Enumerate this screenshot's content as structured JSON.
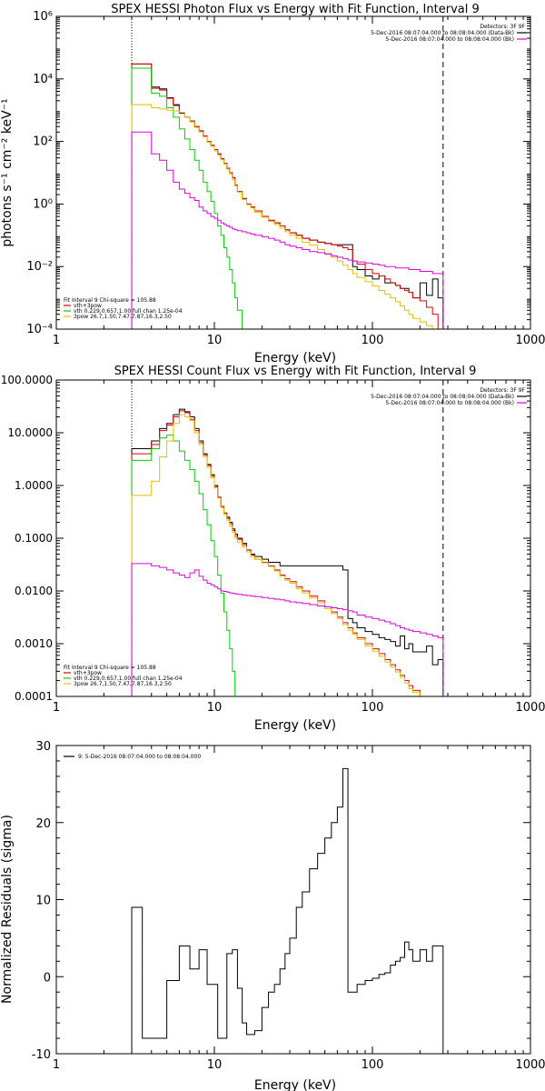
{
  "chart_data": [
    {
      "type": "line",
      "title": "SPEX HESSI Photon Flux vs Energy with Fit Function, Interval 9",
      "xlabel": "Energy (keV)",
      "ylabel": "photons s⁻¹ cm⁻² keV⁻¹",
      "xscale": "log",
      "yscale": "log",
      "xlim": [
        1,
        1000
      ],
      "ylim": [
        0.0001,
        1000000
      ],
      "xticks": [
        "1",
        "10",
        "100",
        "1000"
      ],
      "yticks": [
        "10⁻⁴",
        "10⁻²",
        "10⁰",
        "10²",
        "10⁴",
        "10⁶"
      ],
      "vlines": [
        3,
        280
      ],
      "detectors_label": "Detectors: 3F 9F",
      "time_legend": [
        {
          "text": "5-Dec-2016 08:07:04.000 to 08:08:04.000 (Data-Bk)",
          "color": "#000000"
        },
        {
          "text": "5-Dec-2016 08:07:04.000 to 08:08:04.000 (Bk)",
          "color": "#e000e0"
        }
      ],
      "fit_legend": {
        "header": "Fit Interval 9   Chi-square = 105.88",
        "items": [
          {
            "text": "vth+3pow",
            "color": "#e00000"
          },
          {
            "text": "vth 0.229,0.657,1.00  full chan 1.25e-04",
            "color": "#00d000"
          },
          {
            "text": "3pow 26.7,1.50,7.47,7.87,16.3,2.50",
            "color": "#e0c000"
          }
        ]
      },
      "energy_bins": [
        3,
        3.5,
        4,
        4.5,
        5,
        5.5,
        6,
        6.5,
        7,
        7.5,
        8,
        8.5,
        9,
        9.5,
        10,
        10.5,
        11,
        11.5,
        12,
        12.5,
        13,
        13.5,
        14,
        15,
        16,
        17,
        18,
        20,
        22,
        24,
        26,
        28,
        30,
        33,
        36,
        40,
        45,
        50,
        55,
        60,
        65,
        70,
        75,
        80,
        90,
        100,
        110,
        120,
        130,
        140,
        150,
        160,
        170,
        180,
        200,
        220,
        240,
        260,
        280
      ],
      "series": [
        {
          "name": "data",
          "color": "#000000",
          "values": [
            30000,
            30000,
            5500,
            4800,
            2500,
            1500,
            800,
            600,
            450,
            300,
            220,
            150,
            100,
            75,
            55,
            40,
            28,
            20,
            14,
            10,
            7,
            4,
            2.5,
            1.5,
            1,
            0.8,
            0.6,
            0.4,
            0.3,
            0.25,
            0.2,
            0.15,
            0.12,
            0.1,
            0.08,
            0.07,
            0.06,
            0.055,
            0.05,
            0.05,
            0.05,
            0.05,
            0.01,
            0.008,
            0.005,
            0.004,
            0.005,
            0.003,
            0.003,
            0.0025,
            0.002,
            0.002,
            0.0015,
            0.001,
            0.003,
            0.0012,
            0.004,
            0.001
          ]
        },
        {
          "name": "vth+3pow",
          "color": "#e00000",
          "values": [
            30000,
            30000,
            5000,
            4400,
            2400,
            1400,
            820,
            600,
            450,
            300,
            220,
            150,
            100,
            75,
            55,
            40,
            28,
            20,
            14,
            10,
            7,
            4,
            2.5,
            1.5,
            1,
            0.8,
            0.6,
            0.4,
            0.3,
            0.25,
            0.2,
            0.15,
            0.12,
            0.1,
            0.08,
            0.07,
            0.06,
            0.055,
            0.05,
            0.045,
            0.04,
            0.035,
            0.015,
            0.012,
            0.008,
            0.006,
            0.005,
            0.004,
            0.003,
            0.0025,
            0.002,
            0.0017,
            0.0015,
            0.001,
            0.0008,
            0.0005,
            0.0003,
            0.0001
          ]
        },
        {
          "name": "vth",
          "color": "#00d000",
          "values": [
            22000,
            22000,
            3500,
            2800,
            1200,
            600,
            250,
            120,
            55,
            25,
            12,
            5,
            2.5,
            1.2,
            0.5,
            0.2,
            0.1,
            0.04,
            0.02,
            0.008,
            0.003,
            0.001,
            0.0004,
            0.0001,
            0.0001,
            0.0001,
            0.0001,
            0.0001,
            0.0001,
            0.0001,
            0.0001,
            0.0001,
            0.0001,
            0.0001,
            0.0001,
            0.0001,
            0.0001,
            0.0001,
            0.0001,
            0.0001,
            0.0001,
            0.0001,
            0.0001,
            0.0001,
            0.0001,
            0.0001,
            0.0001,
            0.0001,
            0.0001,
            0.0001,
            0.0001,
            0.0001,
            0.0001,
            0.0001,
            0.0001,
            0.0001,
            0.0001,
            0.0001
          ]
        },
        {
          "name": "3pow",
          "color": "#e0c000",
          "values": [
            1500,
            1500,
            1200,
            1100,
            1000,
            950,
            850,
            600,
            420,
            280,
            200,
            140,
            95,
            70,
            50,
            37,
            26,
            19,
            13,
            9,
            6,
            3.8,
            2.4,
            1.4,
            0.95,
            0.75,
            0.55,
            0.38,
            0.28,
            0.22,
            0.17,
            0.13,
            0.1,
            0.08,
            0.06,
            0.048,
            0.035,
            0.026,
            0.02,
            0.015,
            0.011,
            0.008,
            0.006,
            0.0045,
            0.0033,
            0.0024,
            0.0017,
            0.0013,
            0.001,
            0.00075,
            0.00055,
            0.0004,
            0.0003,
            0.00022,
            0.00017,
            0.00013,
            0.0001,
            0.0001
          ]
        },
        {
          "name": "background",
          "color": "#e000e0",
          "values": [
            200,
            200,
            40,
            25,
            12,
            5,
            3,
            2.2,
            1.6,
            1.3,
            0.8,
            0.6,
            0.5,
            0.4,
            0.35,
            0.3,
            0.25,
            0.22,
            0.2,
            0.18,
            0.16,
            0.15,
            0.14,
            0.13,
            0.12,
            0.11,
            0.1,
            0.09,
            0.08,
            0.07,
            0.06,
            0.05,
            0.045,
            0.04,
            0.035,
            0.03,
            0.028,
            0.025,
            0.022,
            0.02,
            0.018,
            0.016,
            0.015,
            0.014,
            0.013,
            0.012,
            0.011,
            0.01,
            0.01,
            0.009,
            0.009,
            0.009,
            0.008,
            0.008,
            0.007,
            0.007,
            0.006,
            0.006
          ]
        }
      ]
    },
    {
      "type": "line",
      "title": "SPEX HESSI Count Flux vs Energy with Fit Function, Interval 9",
      "xlabel": "Energy (keV)",
      "ylabel": "",
      "xscale": "log",
      "yscale": "log",
      "xlim": [
        1,
        1000
      ],
      "ylim": [
        0.0001,
        100
      ],
      "xticks": [
        "1",
        "10",
        "100",
        "1000"
      ],
      "yticks": [
        "0.0001",
        "0.0010",
        "0.0100",
        "0.1000",
        "1.0000",
        "10.0000",
        "100.0000"
      ],
      "vlines": [
        3,
        280
      ],
      "detectors_label": "Detectors: 3F 9F",
      "time_legend": [
        {
          "text": "5-Dec-2016 08:07:04.000 to 08:08:04.000 (Data-Bk)",
          "color": "#000000"
        },
        {
          "text": "5-Dec-2016 08:07:04.000 to 08:08:04.000 (Bk)",
          "color": "#e000e0"
        }
      ],
      "fit_legend": {
        "header": "Fit Interval 9   Chi-square = 105.88",
        "items": [
          {
            "text": "vth+3pow",
            "color": "#e00000"
          },
          {
            "text": "vth 0.229,0.657,1.00  full chan 1.25e-04",
            "color": "#00d000"
          },
          {
            "text": "3pow 26.7,1.50,7.47,7.87,16.3,2.50",
            "color": "#e0c000"
          }
        ]
      },
      "energy_bins": [
        3,
        3.5,
        4,
        4.5,
        5,
        5.5,
        6,
        6.5,
        7,
        7.5,
        8,
        8.5,
        9,
        9.5,
        10,
        10.5,
        11,
        11.5,
        12,
        12.5,
        13,
        13.5,
        14,
        15,
        16,
        17,
        18,
        20,
        22,
        24,
        26,
        28,
        30,
        33,
        36,
        40,
        45,
        50,
        55,
        60,
        65,
        70,
        75,
        80,
        90,
        100,
        110,
        120,
        130,
        140,
        150,
        160,
        170,
        180,
        200,
        220,
        240,
        260,
        280
      ],
      "series": [
        {
          "name": "data",
          "color": "#000000",
          "values": [
            5,
            5,
            7,
            12,
            15,
            22,
            28,
            25,
            20,
            12,
            7,
            4,
            2.5,
            1.6,
            1,
            0.6,
            0.4,
            0.3,
            0.25,
            0.2,
            0.15,
            0.12,
            0.1,
            0.08,
            0.06,
            0.05,
            0.045,
            0.04,
            0.035,
            0.035,
            0.03,
            0.03,
            0.03,
            0.03,
            0.03,
            0.03,
            0.03,
            0.03,
            0.03,
            0.03,
            0.025,
            0.003,
            0.0025,
            0.002,
            0.0017,
            0.0015,
            0.0013,
            0.0012,
            0.0011,
            0.0009,
            0.0014,
            0.0008,
            0.001,
            0.0007,
            0.0007,
            0.0009,
            0.0004,
            0.0005
          ]
        },
        {
          "name": "vth+3pow",
          "color": "#e00000",
          "values": [
            4,
            4,
            6,
            11,
            14,
            20,
            26,
            24,
            18,
            11,
            6.5,
            3.8,
            2.4,
            1.5,
            0.95,
            0.6,
            0.4,
            0.3,
            0.24,
            0.19,
            0.14,
            0.11,
            0.095,
            0.075,
            0.06,
            0.048,
            0.04,
            0.035,
            0.03,
            0.025,
            0.02,
            0.017,
            0.015,
            0.012,
            0.01,
            0.008,
            0.0065,
            0.005,
            0.004,
            0.0032,
            0.0025,
            0.002,
            0.0016,
            0.0013,
            0.001,
            0.0008,
            0.00065,
            0.0005,
            0.0004,
            0.00032,
            0.00025,
            0.0002,
            0.00016,
            0.00013,
            0.0001,
            0.0001,
            0.0001,
            0.0001
          ]
        },
        {
          "name": "vth",
          "color": "#00d000",
          "values": [
            3,
            3,
            5,
            8,
            9,
            7,
            4.5,
            3,
            2,
            1.2,
            0.7,
            0.35,
            0.18,
            0.09,
            0.045,
            0.02,
            0.009,
            0.004,
            0.0018,
            0.0008,
            0.0003,
            0.0001,
            0.0001,
            0.0001,
            0.0001,
            0.0001,
            0.0001,
            0.0001,
            0.0001,
            0.0001,
            0.0001,
            0.0001,
            0.0001,
            0.0001,
            0.0001,
            0.0001,
            0.0001,
            0.0001,
            0.0001,
            0.0001,
            0.0001,
            0.0001,
            0.0001,
            0.0001,
            0.0001,
            0.0001,
            0.0001,
            0.0001,
            0.0001,
            0.0001,
            0.0001,
            0.0001,
            0.0001,
            0.0001,
            0.0001,
            0.0001,
            0.0001,
            0.0001
          ]
        },
        {
          "name": "3pow",
          "color": "#e0c000",
          "values": [
            0.65,
            0.65,
            1.2,
            3.5,
            7,
            15,
            22,
            20,
            17,
            10,
            6,
            3.5,
            2.2,
            1.4,
            0.9,
            0.58,
            0.38,
            0.28,
            0.22,
            0.17,
            0.13,
            0.1,
            0.085,
            0.068,
            0.055,
            0.045,
            0.04,
            0.034,
            0.029,
            0.024,
            0.019,
            0.016,
            0.014,
            0.011,
            0.0092,
            0.0074,
            0.006,
            0.0046,
            0.0037,
            0.003,
            0.0023,
            0.0018,
            0.0015,
            0.0012,
            0.0009,
            0.00072,
            0.00058,
            0.00045,
            0.00036,
            0.00029,
            0.00023,
            0.00018,
            0.00014,
            0.00012,
            0.0001,
            0.0001,
            0.0001,
            0.0001
          ]
        },
        {
          "name": "background",
          "color": "#e000e0",
          "values": [
            0.033,
            0.033,
            0.03,
            0.028,
            0.025,
            0.022,
            0.02,
            0.018,
            0.022,
            0.025,
            0.019,
            0.016,
            0.014,
            0.013,
            0.012,
            0.011,
            0.01,
            0.0098,
            0.0095,
            0.0092,
            0.009,
            0.0088,
            0.0086,
            0.0084,
            0.0082,
            0.008,
            0.0078,
            0.0075,
            0.0072,
            0.007,
            0.0068,
            0.0065,
            0.0062,
            0.006,
            0.0058,
            0.0055,
            0.0052,
            0.005,
            0.0048,
            0.0046,
            0.0044,
            0.0042,
            0.004,
            0.0035,
            0.0032,
            0.003,
            0.0028,
            0.0026,
            0.0024,
            0.0022,
            0.002,
            0.0019,
            0.0018,
            0.0017,
            0.0016,
            0.0015,
            0.0014,
            0.0013
          ]
        }
      ]
    },
    {
      "type": "line",
      "title": "",
      "xlabel": "Energy (keV)",
      "ylabel": "Normalized Residuals (sigma)",
      "xscale": "log",
      "yscale": "linear",
      "xlim": [
        1,
        1000
      ],
      "ylim": [
        -10,
        30
      ],
      "xticks": [
        "1",
        "10",
        "100",
        "1000"
      ],
      "yticks": [
        "-10",
        "0",
        "10",
        "20",
        "30"
      ],
      "legend": [
        {
          "text": "9:  5-Dec-2016 08:07:04.000 to 08:08:04.000",
          "color": "#000000"
        }
      ],
      "energy_bins": [
        3,
        3.5,
        4,
        4.5,
        5,
        5.5,
        6,
        6.5,
        7,
        7.5,
        8,
        8.5,
        9,
        9.5,
        10,
        10.5,
        11,
        11.5,
        12,
        12.5,
        13,
        13.5,
        14,
        15,
        16,
        17,
        18,
        20,
        22,
        24,
        26,
        28,
        30,
        33,
        36,
        40,
        45,
        50,
        55,
        60,
        65,
        70,
        75,
        80,
        90,
        100,
        110,
        120,
        130,
        140,
        150,
        160,
        170,
        180,
        200,
        220,
        240,
        260,
        280
      ],
      "series": [
        {
          "name": "residuals",
          "color": "#000000",
          "values": [
            9,
            -8,
            -8,
            -8,
            -0.5,
            -0.5,
            4,
            4,
            1,
            1,
            3.5,
            3.5,
            -1,
            -1,
            -1,
            -8,
            -8,
            -8,
            3,
            3,
            3.5,
            3.5,
            -1.5,
            -6,
            -7.5,
            -7.5,
            -7,
            -4,
            -2,
            -1,
            1,
            3,
            5,
            9,
            11,
            14,
            16,
            18,
            20,
            22,
            27,
            -2,
            -2,
            -1,
            -0.5,
            -0.2,
            0.3,
            0.5,
            1.5,
            2,
            2.5,
            4.5,
            3.5,
            2,
            3.5,
            2,
            4,
            4
          ]
        }
      ]
    }
  ]
}
